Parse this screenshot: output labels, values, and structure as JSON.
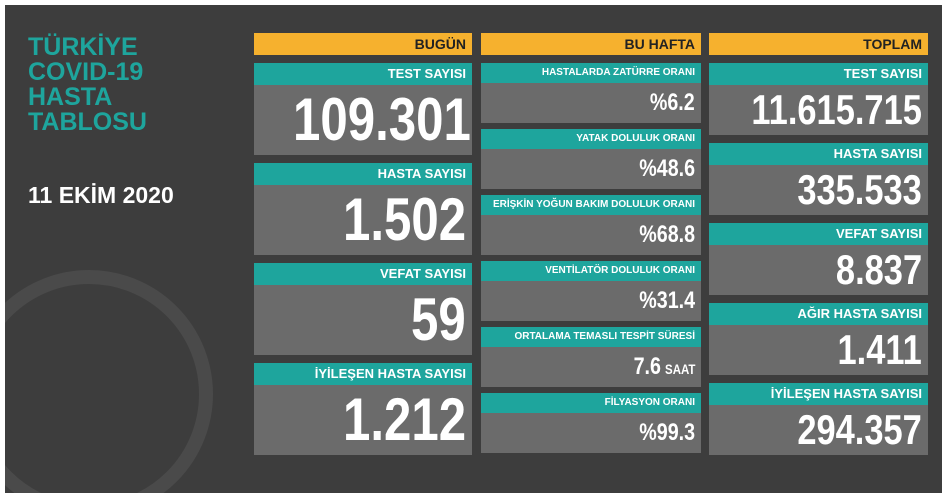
{
  "header": {
    "title_lines": [
      "TÜRKİYE",
      "COVID-19",
      "HASTA",
      "TABLOSU"
    ],
    "date": "11 EKİM 2020"
  },
  "columns": [
    {
      "heading": "BUGÜN",
      "items": [
        {
          "label": "TEST SAYISI",
          "value": "109.301"
        },
        {
          "label": "HASTA SAYISI",
          "value": "1.502"
        },
        {
          "label": "VEFAT SAYISI",
          "value": "59"
        },
        {
          "label": "İYİLEŞEN HASTA SAYISI",
          "value": "1.212"
        }
      ]
    },
    {
      "heading": "BU HAFTA",
      "items": [
        {
          "label": "HASTALARDA ZATÜRRE ORANI",
          "value": "%6.2"
        },
        {
          "label": "YATAK DOLULUK ORANI",
          "value": "%48.6"
        },
        {
          "label": "ERİŞKİN YOĞUN BAKIM DOLULUK ORANI",
          "value": "%68.8"
        },
        {
          "label": "VENTİLATÖR DOLULUK ORANI",
          "value": "%31.4"
        },
        {
          "label": "ORTALAMA TEMASLI TESPİT SÜRESİ",
          "value": "7.6",
          "unit": "SAAT"
        },
        {
          "label": "FİLYASYON ORANI",
          "value": "%99.3"
        }
      ]
    },
    {
      "heading": "TOPLAM",
      "items": [
        {
          "label": "TEST SAYISI",
          "value": "11.615.715"
        },
        {
          "label": "HASTA SAYISI",
          "value": "335.533"
        },
        {
          "label": "VEFAT SAYISI",
          "value": "8.837"
        },
        {
          "label": "AĞIR HASTA SAYISI",
          "value": "1.411"
        },
        {
          "label": "İYİLEŞEN HASTA SAYISI",
          "value": "294.357"
        }
      ]
    }
  ]
}
